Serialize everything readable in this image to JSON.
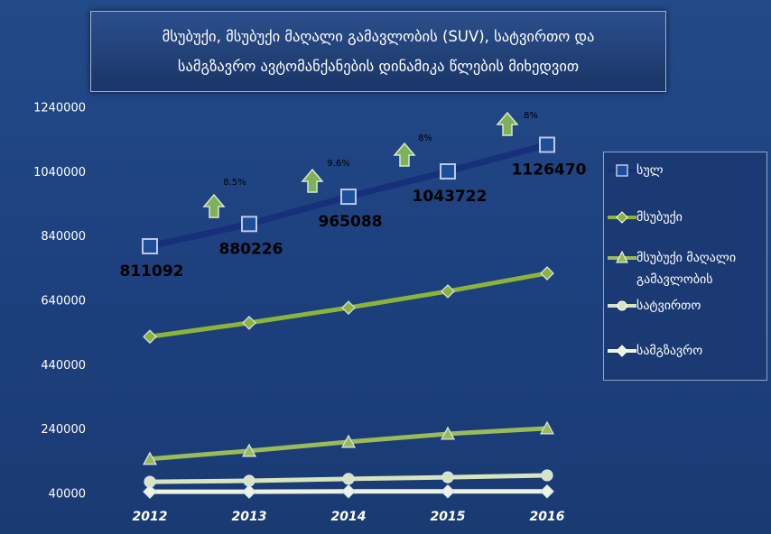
{
  "chart_data": {
    "type": "line",
    "title": [
      "მსუბუქი, მსუბუქი მაღალი გამავლობის (SUV), სატვირთო და",
      "სამგზავრო ავტომანქანების დინამიკა წლების მიხედვით"
    ],
    "categories": [
      "2012",
      "2013",
      "2014",
      "2015",
      "2016"
    ],
    "series": [
      {
        "name": "სულ",
        "color": "#17307a",
        "marker": "square",
        "values": [
          811092,
          880226,
          965088,
          1043722,
          1126470
        ],
        "data_labels": true
      },
      {
        "name": "მსუბუქი",
        "color": "#8db33a",
        "marker": "diamond",
        "values": [
          530000,
          573000,
          620000,
          671000,
          727000
        ]
      },
      {
        "name": "მსუბუქი მაღალი გამავლობის",
        "color": "#9bbb59",
        "marker": "triangle",
        "values": [
          150000,
          175000,
          203000,
          228000,
          245000
        ]
      },
      {
        "name": "სატვირთო",
        "color": "#d7e4bd",
        "marker": "circle",
        "values": [
          79000,
          82000,
          88000,
          93000,
          99000
        ]
      },
      {
        "name": "სამგზავრო",
        "color": "#eef3e2",
        "marker": "diamond",
        "values": [
          48000,
          48000,
          49000,
          49000,
          49000
        ]
      }
    ],
    "annotations": [
      "8.5%",
      "9.6%",
      "8%",
      "8%"
    ],
    "ylim": [
      40000,
      1240000
    ],
    "yticks": [
      40000,
      240000,
      440000,
      640000,
      840000,
      1040000,
      1240000
    ],
    "legend": "right"
  }
}
